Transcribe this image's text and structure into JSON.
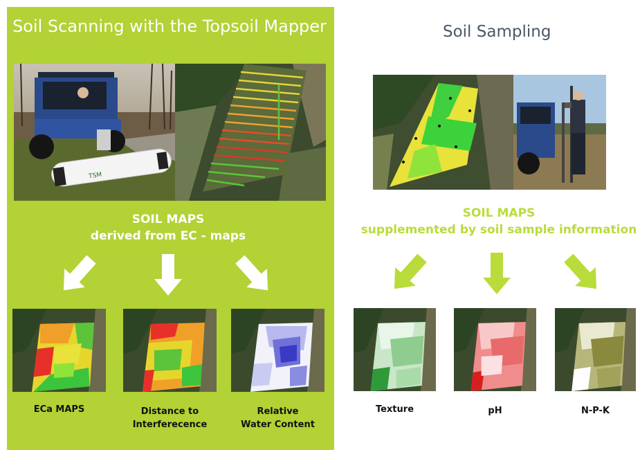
{
  "colors": {
    "panel_green": "#b2d235",
    "accent_green": "#b9dc3a",
    "title_gray": "#4a5868"
  },
  "left": {
    "title": "Soil Scanning with the Topsoil Mapper",
    "machine_label": "TSM",
    "heading": [
      "SOIL MAPS",
      "derived from EC - maps"
    ],
    "maps": [
      {
        "caption": [
          "ECa MAPS"
        ],
        "icon": "eca-map"
      },
      {
        "caption": [
          "Distance to",
          "Interferecence"
        ],
        "icon": "distance-map"
      },
      {
        "caption": [
          "Relative",
          "Water Content"
        ],
        "icon": "water-map"
      }
    ]
  },
  "right": {
    "title": "Soil Sampling",
    "heading": [
      "SOIL MAPS",
      "supplemented by soil sample information"
    ],
    "maps": [
      {
        "caption": [
          "Texture"
        ],
        "icon": "texture-map"
      },
      {
        "caption": [
          "pH"
        ],
        "icon": "ph-map"
      },
      {
        "caption": [
          "N-P-K"
        ],
        "icon": "npk-map"
      }
    ]
  }
}
